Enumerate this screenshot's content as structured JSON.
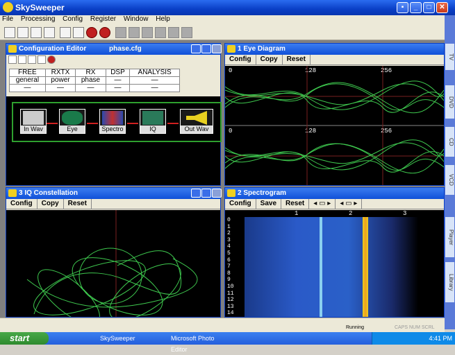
{
  "app": {
    "title": "SkySweeper"
  },
  "menu": [
    "File",
    "Processing",
    "Config",
    "Register",
    "Window",
    "Help"
  ],
  "config_editor": {
    "title": "Configuration Editor",
    "file": "phase.cfg",
    "table_row1": [
      "FREE",
      "RXTX",
      "RX",
      "DSP",
      "ANALYSIS"
    ],
    "table_row2": [
      "general",
      "power",
      "phase",
      "—",
      "—"
    ],
    "table_row3": [
      "—",
      "—",
      "—",
      "—",
      "—"
    ],
    "blocks": [
      "In Wav",
      "Eye",
      "Spectro",
      "IQ",
      "Out Wav"
    ]
  },
  "eye": {
    "title": "1 Eye Diagram",
    "buttons": [
      "Config",
      "Copy",
      "Reset"
    ],
    "scale": [
      "0",
      "128",
      "256"
    ]
  },
  "iq": {
    "title": "3 IQ Constellation",
    "buttons": [
      "Config",
      "Copy",
      "Reset"
    ]
  },
  "spectro": {
    "title": "2 Spectrogram",
    "buttons": [
      "Config",
      "Save",
      "Reset"
    ],
    "xscale": [
      "1",
      "2",
      "3"
    ],
    "yscale": [
      "0",
      "1",
      "2",
      "3",
      "4",
      "5",
      "6",
      "7",
      "8",
      "9",
      "10",
      "11",
      "12",
      "13",
      "14"
    ]
  },
  "side_tabs": [
    "TV",
    "DVD",
    "CD",
    "VCD",
    "Player",
    "Library"
  ],
  "status": {
    "text": "Running",
    "indicators": "CAPS  NUM  SCRL"
  },
  "taskbar": {
    "start": "start",
    "tasks": [
      "SkySweeper",
      "Microsoft Photo Editor"
    ],
    "clock": "4:41 PM"
  }
}
